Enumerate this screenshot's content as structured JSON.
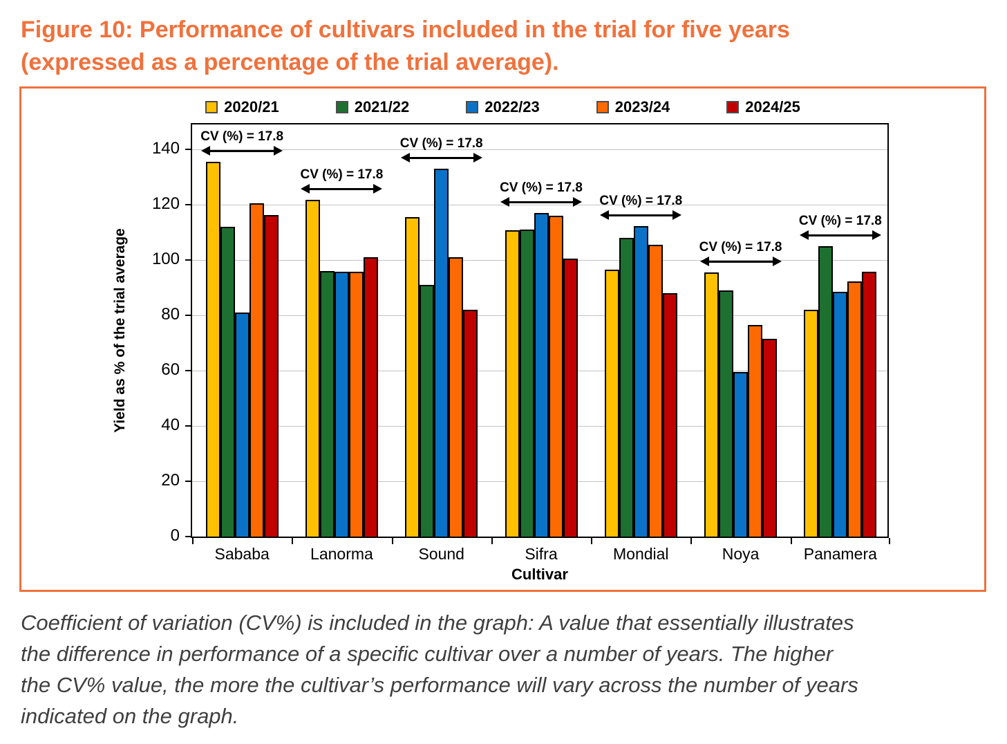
{
  "page": {
    "title_line1": "Figure 10: Performance of cultivars included in the trial for five years",
    "title_line2": "(expressed as a percentage of the trial average).",
    "accent_color": "#F0713C"
  },
  "chart_data": {
    "type": "bar",
    "title": "",
    "xlabel": "Cultivar",
    "ylabel": "Yield as % of the trial average",
    "ylim": [
      0,
      150
    ],
    "yticks": [
      0,
      20,
      40,
      60,
      80,
      100,
      120,
      140
    ],
    "grid": true,
    "legend_position": "top",
    "categories": [
      "Sababa",
      "Lanorma",
      "Sound",
      "Sifra",
      "Mondial",
      "Noya",
      "Panamera"
    ],
    "series": [
      {
        "name": "2020/21",
        "color": "#FFC000",
        "values": [
          135.5,
          121.7,
          115.5,
          110.8,
          96.5,
          95.5,
          82
        ]
      },
      {
        "name": "2021/22",
        "color": "#1E7030",
        "values": [
          112,
          96,
          91,
          111,
          108,
          89,
          105
        ]
      },
      {
        "name": "2022/23",
        "color": "#0A73C8",
        "values": [
          81,
          95.7,
          133,
          117,
          112.3,
          59.5,
          88.5
        ]
      },
      {
        "name": "2023/24",
        "color": "#FD6A02",
        "values": [
          120.5,
          95.7,
          101,
          116,
          105.5,
          76.5,
          92.3
        ]
      },
      {
        "name": "2024/25",
        "color": "#C00000",
        "values": [
          116.3,
          101,
          82,
          100.5,
          88,
          71.5,
          95.7
        ]
      }
    ],
    "annotations": {
      "cv_labels": [
        "CV (%) = 17.8",
        "CV (%) = 17.8",
        "CV (%) = 17.8",
        "CV (%) = 17.8",
        "CV (%) = 17.8",
        "CV (%) = 17.8",
        "CV (%) = 17.8"
      ]
    }
  },
  "caption": {
    "lines": [
      "Coefficient of variation (CV%) is included in the graph: A value that essentially illustrates",
      "the difference in performance of a specific cultivar over a number of years. The higher",
      "the CV% value, the more the cultivar’s performance will vary across the number of years",
      "indicated on the graph."
    ]
  }
}
